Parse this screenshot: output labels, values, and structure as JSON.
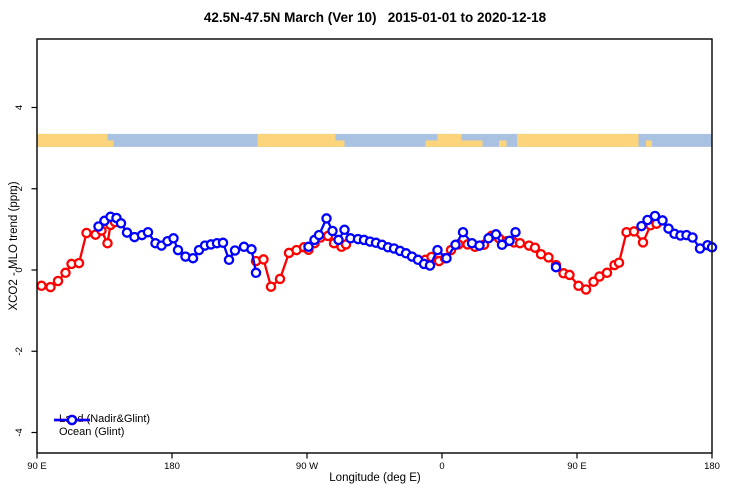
{
  "title": "42.5N-47.5N March (Ver 10)   2015-01-01 to 2020-12-18",
  "axes": {
    "x": {
      "title": "Longitude (deg E)",
      "range": [
        90,
        540
      ],
      "note": "longitude wraps eastward: 90E → 180 → 90W → 0 → 90E → 180",
      "ticks": [
        {
          "value": 90,
          "label": "90 E"
        },
        {
          "value": 180,
          "label": "180"
        },
        {
          "value": 270,
          "label": "90 W"
        },
        {
          "value": 360,
          "label": "0"
        },
        {
          "value": 450,
          "label": "90 E"
        },
        {
          "value": 540,
          "label": "180"
        }
      ]
    },
    "y": {
      "title": "XCO2 - MLO trend (ppm)",
      "range": [
        -4.5,
        5.7
      ],
      "ticks": [
        {
          "value": 4,
          "label": "4"
        },
        {
          "value": 2,
          "label": "2"
        },
        {
          "value": 0,
          "label": "0"
        },
        {
          "value": -2,
          "label": "-2"
        },
        {
          "value": -4,
          "label": "-4"
        }
      ]
    }
  },
  "legend": {
    "items": [
      {
        "label": "Land (Nadir&Glint)",
        "color": "#ff0000"
      },
      {
        "label": "Ocean (Glint)",
        "color": "#0000ff"
      }
    ]
  },
  "colors": {
    "land_series": "#ff0000",
    "ocean_series": "#0000ff",
    "land_band": "#fbd47c",
    "ocean_band": "#aac2e2",
    "axis": "#000000",
    "background": "#ffffff"
  },
  "surface_band": {
    "description": "land/ocean strip map of 42.5N-47.5N latitude belt drawn at y ~ 3.2 ppm",
    "y_range": [
      3.03,
      3.35
    ],
    "base": "ocean",
    "land_segments": [
      [
        90,
        137,
        "full"
      ],
      [
        137,
        141,
        "bottom"
      ],
      [
        237,
        289,
        "full"
      ],
      [
        289,
        295,
        "bottom"
      ],
      [
        349,
        357,
        "bottom"
      ],
      [
        357,
        373,
        "full"
      ],
      [
        373,
        387,
        "bottom"
      ],
      [
        398,
        403,
        "bottom"
      ],
      [
        410,
        491,
        "full"
      ],
      [
        496,
        500,
        "bottom"
      ]
    ]
  },
  "chart_data": {
    "type": "line",
    "title": "42.5N-47.5N March (Ver 10)   2015-01-01 to 2020-12-18",
    "xlabel": "Longitude (deg E)",
    "ylabel": "XCO2 - MLO trend (ppm)",
    "xlim": [
      90,
      540
    ],
    "ylim": [
      -4.5,
      5.7
    ],
    "grid": false,
    "legend_position": "bottom-left",
    "marker": "open-circle",
    "series": [
      {
        "name": "Land (Nadir&Glint)",
        "color": "#ff0000",
        "segments": [
          [
            [
              93,
              -0.39
            ],
            [
              99,
              -0.42
            ],
            [
              104,
              -0.27
            ],
            [
              109,
              -0.07
            ],
            [
              113,
              0.15
            ],
            [
              118,
              0.17
            ],
            [
              123,
              0.91
            ],
            [
              129,
              0.87
            ],
            [
              133,
              0.97
            ],
            [
              137,
              0.66
            ],
            [
              139,
              1.11
            ],
            [
              142,
              1.18
            ]
          ],
          [
            [
              236,
              0.22
            ],
            [
              241,
              0.26
            ],
            [
              246,
              -0.41
            ],
            [
              252,
              -0.22
            ],
            [
              258,
              0.42
            ],
            [
              263,
              0.49
            ],
            [
              268,
              0.56
            ],
            [
              271,
              0.5
            ],
            [
              275,
              0.66
            ],
            [
              279,
              0.8
            ],
            [
              284,
              0.84
            ],
            [
              288,
              0.66
            ],
            [
              293,
              0.57
            ],
            [
              296,
              0.63
            ]
          ],
          [
            [
              349,
              0.25
            ],
            [
              353,
              0.32
            ],
            [
              358,
              0.22
            ],
            [
              362,
              0.29
            ],
            [
              366,
              0.49
            ],
            [
              371,
              0.63
            ],
            [
              377,
              0.63
            ],
            [
              382,
              0.57
            ],
            [
              388,
              0.62
            ],
            [
              393,
              0.84
            ],
            [
              398,
              0.78
            ],
            [
              403,
              0.71
            ],
            [
              408,
              0.68
            ],
            [
              412,
              0.66
            ],
            [
              418,
              0.6
            ],
            [
              422,
              0.55
            ],
            [
              426,
              0.39
            ],
            [
              431,
              0.31
            ],
            [
              436,
              0.12
            ],
            [
              441,
              -0.08
            ],
            [
              445,
              -0.12
            ],
            [
              451,
              -0.39
            ],
            [
              456,
              -0.48
            ],
            [
              461,
              -0.29
            ],
            [
              465,
              -0.16
            ],
            [
              470,
              -0.07
            ],
            [
              475,
              0.12
            ],
            [
              478,
              0.18
            ],
            [
              483,
              0.93
            ],
            [
              488,
              0.95
            ],
            [
              494,
              0.68
            ],
            [
              499,
              1.1
            ],
            [
              503,
              1.14
            ]
          ]
        ]
      },
      {
        "name": "Ocean (Glint)",
        "color": "#0000ff",
        "segments": [
          [
            [
              131,
              1.07
            ],
            [
              135,
              1.21
            ],
            [
              139,
              1.31
            ],
            [
              143,
              1.28
            ],
            [
              146,
              1.15
            ],
            [
              150,
              0.92
            ],
            [
              155,
              0.81
            ],
            [
              160,
              0.86
            ],
            [
              164,
              0.93
            ],
            [
              169,
              0.66
            ],
            [
              173,
              0.6
            ],
            [
              177,
              0.71
            ],
            [
              181,
              0.78
            ],
            [
              184,
              0.49
            ],
            [
              189,
              0.33
            ],
            [
              194,
              0.29
            ],
            [
              198,
              0.49
            ],
            [
              202,
              0.6
            ],
            [
              206,
              0.63
            ],
            [
              210,
              0.66
            ],
            [
              214,
              0.67
            ],
            [
              218,
              0.25
            ],
            [
              222,
              0.48
            ],
            [
              228,
              0.57
            ],
            [
              233,
              0.51
            ],
            [
              236,
              -0.07
            ]
          ],
          [
            [
              271,
              0.57
            ],
            [
              275,
              0.74
            ],
            [
              278,
              0.86
            ],
            [
              283,
              1.27
            ],
            [
              287,
              0.96
            ],
            [
              291,
              0.74
            ],
            [
              295,
              0.99
            ],
            [
              299,
              0.78
            ],
            [
              304,
              0.76
            ],
            [
              308,
              0.74
            ],
            [
              312,
              0.7
            ],
            [
              316,
              0.67
            ],
            [
              320,
              0.62
            ],
            [
              324,
              0.56
            ],
            [
              328,
              0.53
            ],
            [
              332,
              0.47
            ],
            [
              336,
              0.41
            ],
            [
              340,
              0.33
            ],
            [
              344,
              0.25
            ],
            [
              348,
              0.15
            ],
            [
              352,
              0.11
            ],
            [
              357,
              0.49
            ],
            [
              363,
              0.29
            ],
            [
              369,
              0.62
            ],
            [
              374,
              0.93
            ],
            [
              380,
              0.66
            ],
            [
              385,
              0.6
            ],
            [
              391,
              0.78
            ],
            [
              396,
              0.88
            ],
            [
              400,
              0.62
            ],
            [
              405,
              0.72
            ],
            [
              409,
              0.93
            ]
          ],
          [
            [
              436,
              0.07
            ]
          ],
          [
            [
              493,
              1.08
            ],
            [
              497,
              1.23
            ],
            [
              502,
              1.33
            ],
            [
              507,
              1.22
            ],
            [
              511,
              1.02
            ],
            [
              515,
              0.89
            ],
            [
              519,
              0.85
            ],
            [
              523,
              0.86
            ],
            [
              527,
              0.8
            ],
            [
              532,
              0.53
            ],
            [
              537,
              0.61
            ],
            [
              540,
              0.56
            ]
          ]
        ]
      }
    ]
  }
}
